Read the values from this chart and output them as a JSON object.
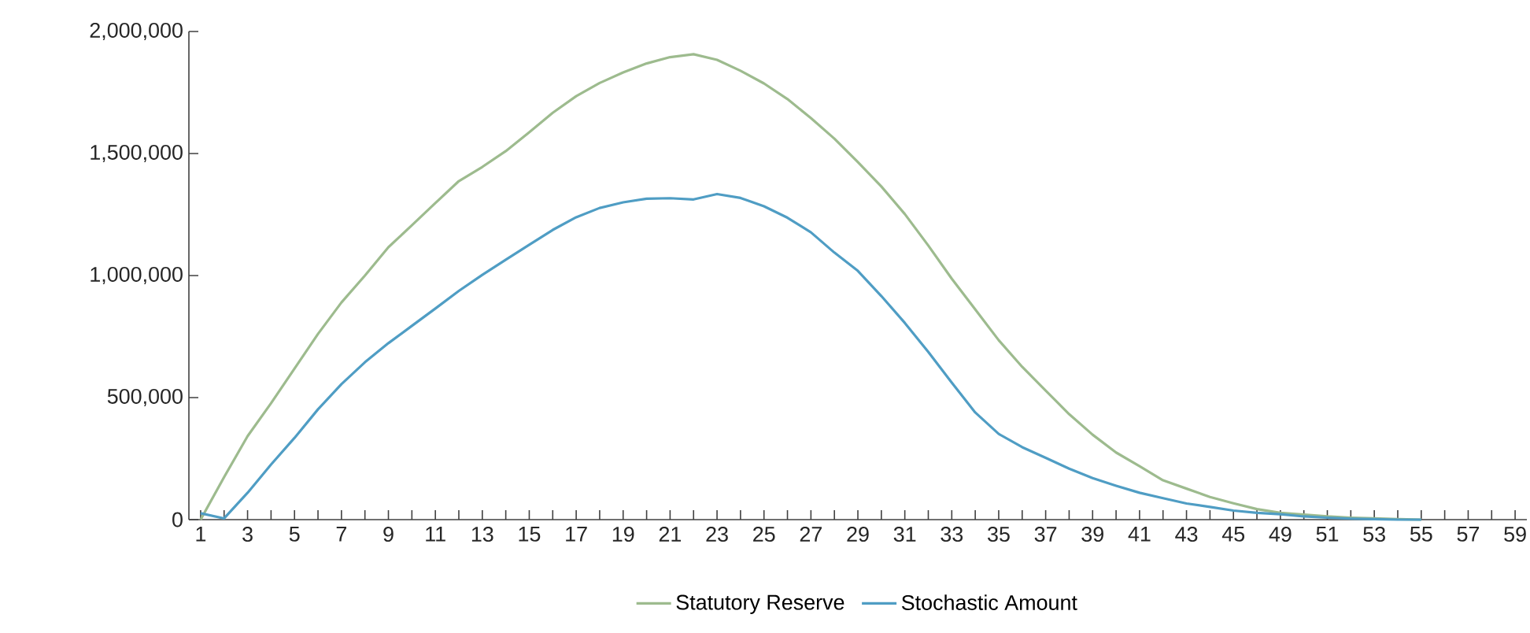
{
  "chart_data": {
    "type": "line",
    "categories": [
      "1",
      null,
      "3",
      null,
      "5",
      null,
      "7",
      null,
      "9",
      null,
      "11",
      null,
      "13",
      null,
      "15",
      null,
      "17",
      null,
      "19",
      null,
      "21",
      null,
      "23",
      null,
      "25",
      null,
      "27",
      null,
      "29",
      null,
      "31",
      null,
      "33",
      null,
      "35",
      null,
      "37",
      null,
      "39",
      null,
      "41",
      null,
      "43",
      null,
      "45",
      null,
      "49",
      null,
      "51",
      null,
      "53",
      null,
      "55",
      null,
      "57",
      null,
      "59"
    ],
    "series": [
      {
        "name": "Statutory Reserve",
        "color": "#9dbb8e",
        "values": [
          0,
          174000,
          342000,
          477000,
          619000,
          761000,
          890000,
          1000000,
          1116000,
          1206000,
          1297000,
          1387000,
          1445000,
          1510000,
          1587000,
          1667000,
          1735000,
          1789000,
          1832000,
          1869000,
          1895000,
          1907000,
          1884000,
          1839000,
          1787000,
          1723000,
          1645000,
          1561000,
          1465000,
          1365000,
          1252000,
          1123000,
          987000,
          861000,
          735000,
          626000,
          529000,
          432000,
          348000,
          275000,
          219000,
          161000,
          127000,
          93000,
          67000,
          43000,
          28000,
          21000,
          13000,
          8000,
          5000,
          2000,
          0,
          null,
          null,
          null,
          null
        ]
      },
      {
        "name": "Stochastic Amount",
        "color": "#4f9dc4",
        "values": [
          26000,
          5000,
          110000,
          226000,
          335000,
          452000,
          555000,
          645000,
          723000,
          794000,
          865000,
          937000,
          1003000,
          1065000,
          1126000,
          1187000,
          1239000,
          1277000,
          1300000,
          1315000,
          1317000,
          1312000,
          1334000,
          1318000,
          1284000,
          1237000,
          1177000,
          1094000,
          1019000,
          916000,
          806000,
          687000,
          561000,
          439000,
          351000,
          297000,
          253000,
          209000,
          170000,
          139000,
          110000,
          88000,
          66000,
          52000,
          37000,
          28000,
          22000,
          13000,
          8000,
          4000,
          2000,
          0,
          0,
          null,
          null,
          null,
          null
        ]
      }
    ],
    "ylim": [
      0,
      2000000
    ],
    "yticks": [
      {
        "value": 0,
        "label": "0"
      },
      {
        "value": 500000,
        "label": "500,000"
      },
      {
        "value": 1000000,
        "label": "1,000,000"
      },
      {
        "value": 1500000,
        "label": "1,500,000"
      },
      {
        "value": 2000000,
        "label": "2,000,000"
      }
    ],
    "grid": false,
    "legend": "bottom",
    "marker": "none",
    "line_style": "solid"
  }
}
